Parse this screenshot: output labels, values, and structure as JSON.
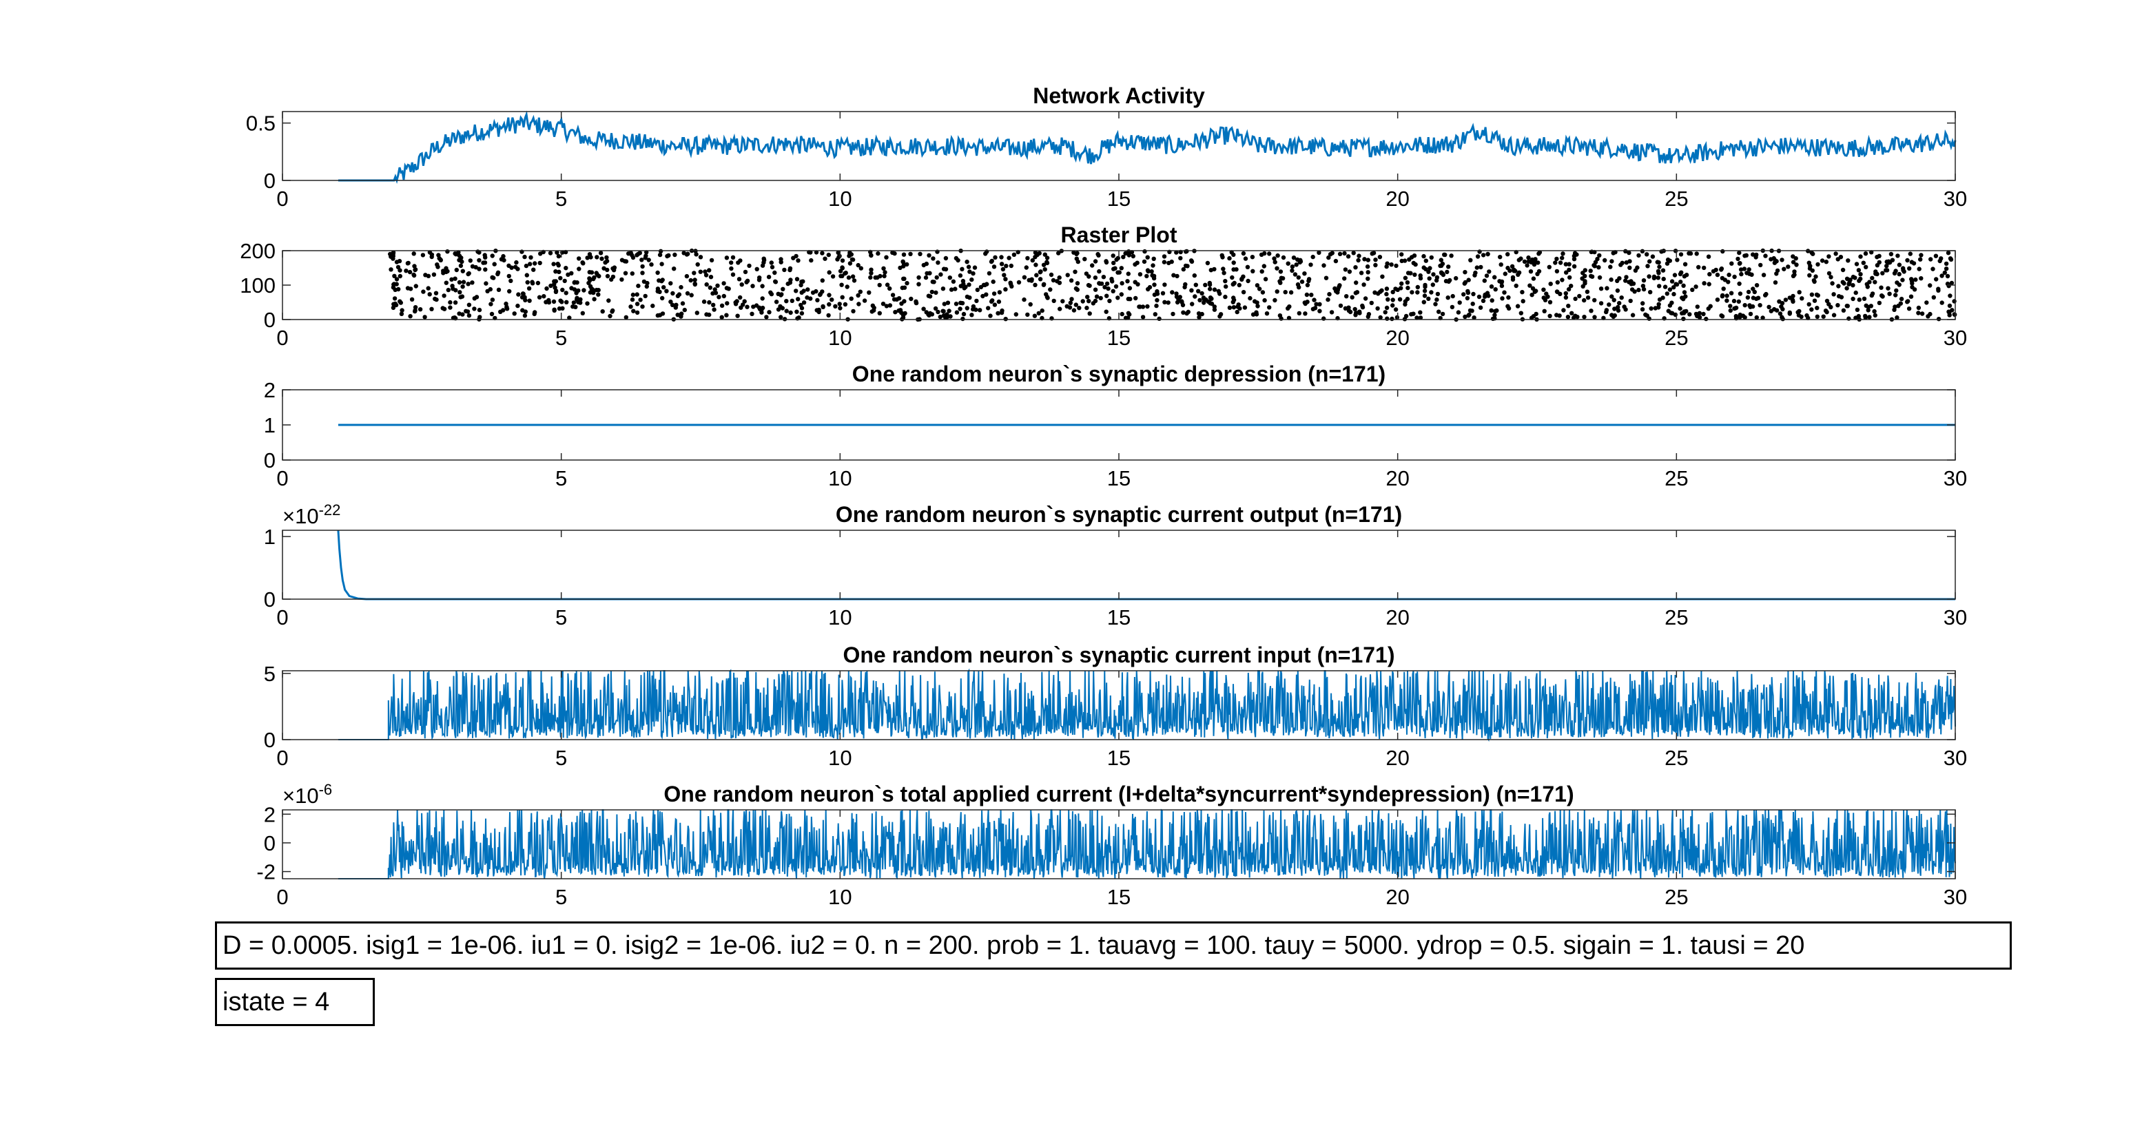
{
  "colors": {
    "line": "#0072BD",
    "axis": "#262626",
    "dot": "#000000",
    "tick": "#000000"
  },
  "textboxes": {
    "params": "D = 0.0005. isig1 = 1e-06. iu1 = 0. isig2 = 1e-06. iu2 = 0. n = 200. prob = 1. tauavg = 100. tauy = 5000. ydrop = 0.5. sigain = 1. tausi = 20",
    "istate": "istate = 4"
  },
  "chart_data": [
    {
      "id": "network-activity",
      "type": "line",
      "title": "Network Activity",
      "xlim": [
        0,
        30
      ],
      "ylim": [
        0,
        0.6
      ],
      "xticks": [
        0,
        5,
        10,
        15,
        20,
        25,
        30
      ],
      "yticks": [
        0,
        0.5
      ],
      "ytick_labels": [
        "0",
        "0.5"
      ],
      "x": [
        1,
        2,
        2.3,
        2.8,
        3.3,
        3.8,
        4.3,
        5,
        5.5,
        6,
        7,
        8,
        9,
        10,
        11,
        12,
        13,
        14,
        14.5,
        15,
        16,
        17,
        17.5,
        18,
        19,
        20,
        21,
        21.5,
        22,
        23,
        24,
        25,
        26,
        27,
        28,
        29,
        30
      ],
      "y": [
        0,
        0,
        0.1,
        0.3,
        0.4,
        0.45,
        0.5,
        0.45,
        0.35,
        0.35,
        0.3,
        0.3,
        0.32,
        0.28,
        0.3,
        0.3,
        0.28,
        0.3,
        0.22,
        0.35,
        0.3,
        0.4,
        0.3,
        0.3,
        0.28,
        0.3,
        0.32,
        0.45,
        0.3,
        0.3,
        0.28,
        0.2,
        0.28,
        0.3,
        0.28,
        0.3,
        0.35
      ]
    },
    {
      "id": "raster-plot",
      "type": "scatter",
      "title": "Raster Plot",
      "xlim": [
        0,
        30
      ],
      "ylim": [
        0,
        200
      ],
      "xticks": [
        0,
        5,
        10,
        15,
        20,
        25,
        30
      ],
      "yticks": [
        0,
        100,
        200
      ],
      "ytick_labels": [
        "0",
        "100",
        "200"
      ],
      "x_range": [
        1.9,
        30
      ],
      "y_range": [
        0,
        200
      ],
      "approx_spike_count": 1900
    },
    {
      "id": "synaptic-depression",
      "type": "line",
      "title": "One random neuron`s synaptic depression (n=171)",
      "xlim": [
        0,
        30
      ],
      "ylim": [
        0,
        2
      ],
      "xticks": [
        0,
        5,
        10,
        15,
        20,
        25,
        30
      ],
      "yticks": [
        0,
        1,
        2
      ],
      "ytick_labels": [
        "0",
        "1",
        "2"
      ],
      "x": [
        1,
        30
      ],
      "y": [
        1,
        1
      ]
    },
    {
      "id": "synaptic-current-output",
      "type": "line",
      "title": "One random neuron`s synaptic current output (n=171)",
      "exponent_base": "×10",
      "exponent": "-22",
      "xlim": [
        0,
        30
      ],
      "ylim": [
        0,
        1.1
      ],
      "xticks": [
        0,
        5,
        10,
        15,
        20,
        25,
        30
      ],
      "yticks": [
        0,
        1
      ],
      "ytick_labels": [
        "0",
        "1"
      ],
      "x": [
        1.0,
        1.02,
        1.05,
        1.08,
        1.12,
        1.2,
        1.35,
        1.5,
        2,
        30
      ],
      "y": [
        1.1,
        0.8,
        0.5,
        0.3,
        0.15,
        0.05,
        0.01,
        0,
        0,
        0
      ]
    },
    {
      "id": "synaptic-current-input",
      "type": "line",
      "title": "One random neuron`s synaptic current input (n=171)",
      "xlim": [
        0,
        30
      ],
      "ylim": [
        0,
        5.2
      ],
      "xticks": [
        0,
        5,
        10,
        15,
        20,
        25,
        30
      ],
      "yticks": [
        0,
        5
      ],
      "ytick_labels": [
        "0",
        "5"
      ],
      "baseline_until_x": 1.9,
      "baseline_y": 0,
      "noise_max": 5.2
    },
    {
      "id": "total-applied-current",
      "type": "line",
      "title": "One random neuron`s total applied current (I+delta*syncurrent*syndepression) (n=171)",
      "exponent_base": "×10",
      "exponent": "-6",
      "xlim": [
        0,
        30
      ],
      "ylim": [
        -2.5,
        2.3
      ],
      "xticks": [
        0,
        5,
        10,
        15,
        20,
        25,
        30
      ],
      "yticks": [
        -2,
        0,
        2
      ],
      "ytick_labels": [
        "-2",
        "0",
        "2"
      ],
      "baseline_until_x": 1.9,
      "baseline_y": -2.5,
      "noise_max": 2.3
    }
  ]
}
